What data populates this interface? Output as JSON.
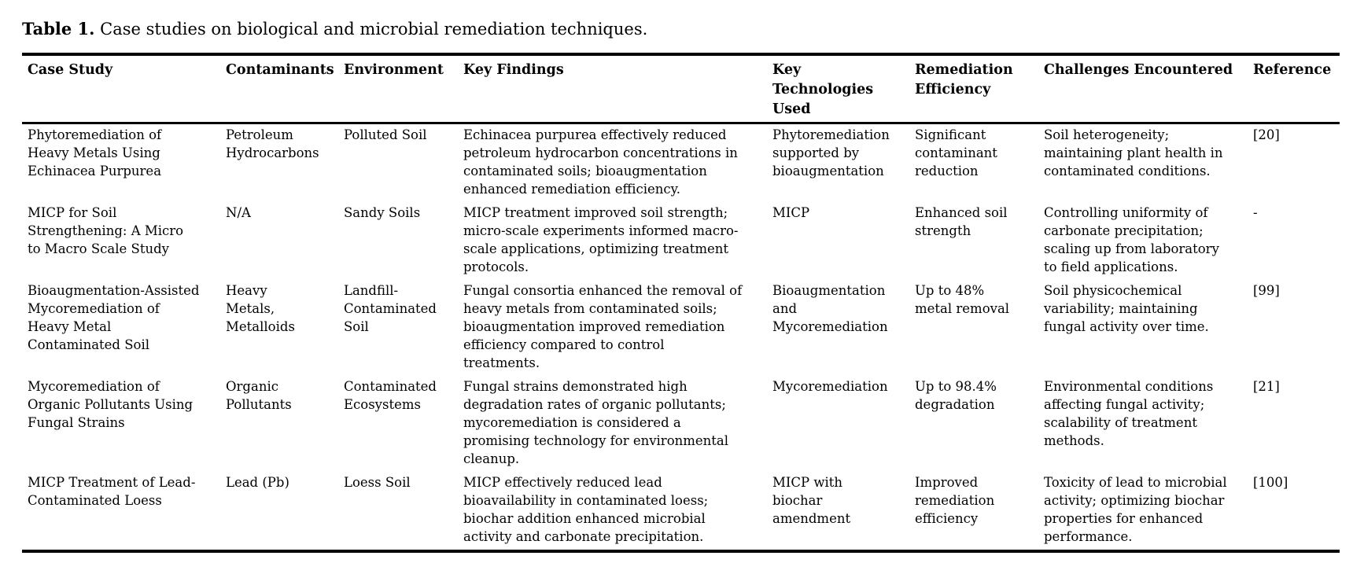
{
  "caption": {
    "label": "Table 1.",
    "text": " Case studies on biological and microbial remediation techniques."
  },
  "table": {
    "headers": [
      "Case Study",
      "Contaminants",
      "Environment",
      "Key Findings",
      "Key Technologies Used",
      "Remediation Efficiency",
      "Challenges Encountered",
      "Reference"
    ],
    "rows": [
      {
        "cells": [
          "Phytoremediation of Heavy Metals Using Echinacea Purpurea",
          "Petroleum Hydrocarbons",
          "Polluted Soil",
          "Echinacea purpurea effectively reduced petroleum hydrocarbon concentrations in contaminated soils; bioaugmentation enhanced remediation efficiency.",
          "Phytoremediation supported by bioaugmentation",
          "Significant contaminant reduction",
          "Soil heterogeneity; maintaining plant health in contaminated conditions.",
          "[20]"
        ]
      },
      {
        "cells": [
          "MICP for Soil Strengthening: A Micro to Macro Scale Study",
          "N/A",
          "Sandy Soils",
          "MICP treatment improved soil strength; micro-scale experiments informed macro-scale applications, optimizing treatment protocols.",
          "MICP",
          "Enhanced soil strength",
          "Controlling uniformity of carbonate precipitation; scaling up from laboratory to field applications.",
          "-"
        ]
      },
      {
        "cells": [
          "Bioaugmentation-Assisted Mycoremediation of Heavy Metal Contaminated Soil",
          "Heavy Metals, Metalloids",
          "Landfill-Contaminated Soil",
          "Fungal consortia enhanced the removal of heavy metals from contaminated soils; bioaugmentation improved remediation efficiency compared to control treatments.",
          "Bioaugmentation and Mycoremediation",
          "Up to 48% metal removal",
          "Soil physicochemical variability; maintaining fungal activity over time.",
          "[99]"
        ]
      },
      {
        "cells": [
          "Mycoremediation of Organic Pollutants Using Fungal Strains",
          "Organic Pollutants",
          "Contaminated Ecosystems",
          "Fungal strains demonstrated high degradation rates of organic pollutants; mycoremediation is considered a promising technology for environmental cleanup.",
          "Mycoremediation",
          "Up to 98.4% degradation",
          "Environmental conditions affecting fungal activity; scalability of treatment methods.",
          "[21]"
        ]
      },
      {
        "cells": [
          "MICP Treatment of Lead-Contaminated Loess",
          "Lead (Pb)",
          "Loess Soil",
          "MICP effectively reduced lead bioavailability in contaminated loess; biochar addition enhanced microbial activity and carbonate precipitation.",
          "MICP with biochar amendment",
          "Improved remediation efficiency",
          "Toxicity of lead to microbial activity; optimizing biochar properties for enhanced performance.",
          "[100]"
        ]
      }
    ]
  }
}
